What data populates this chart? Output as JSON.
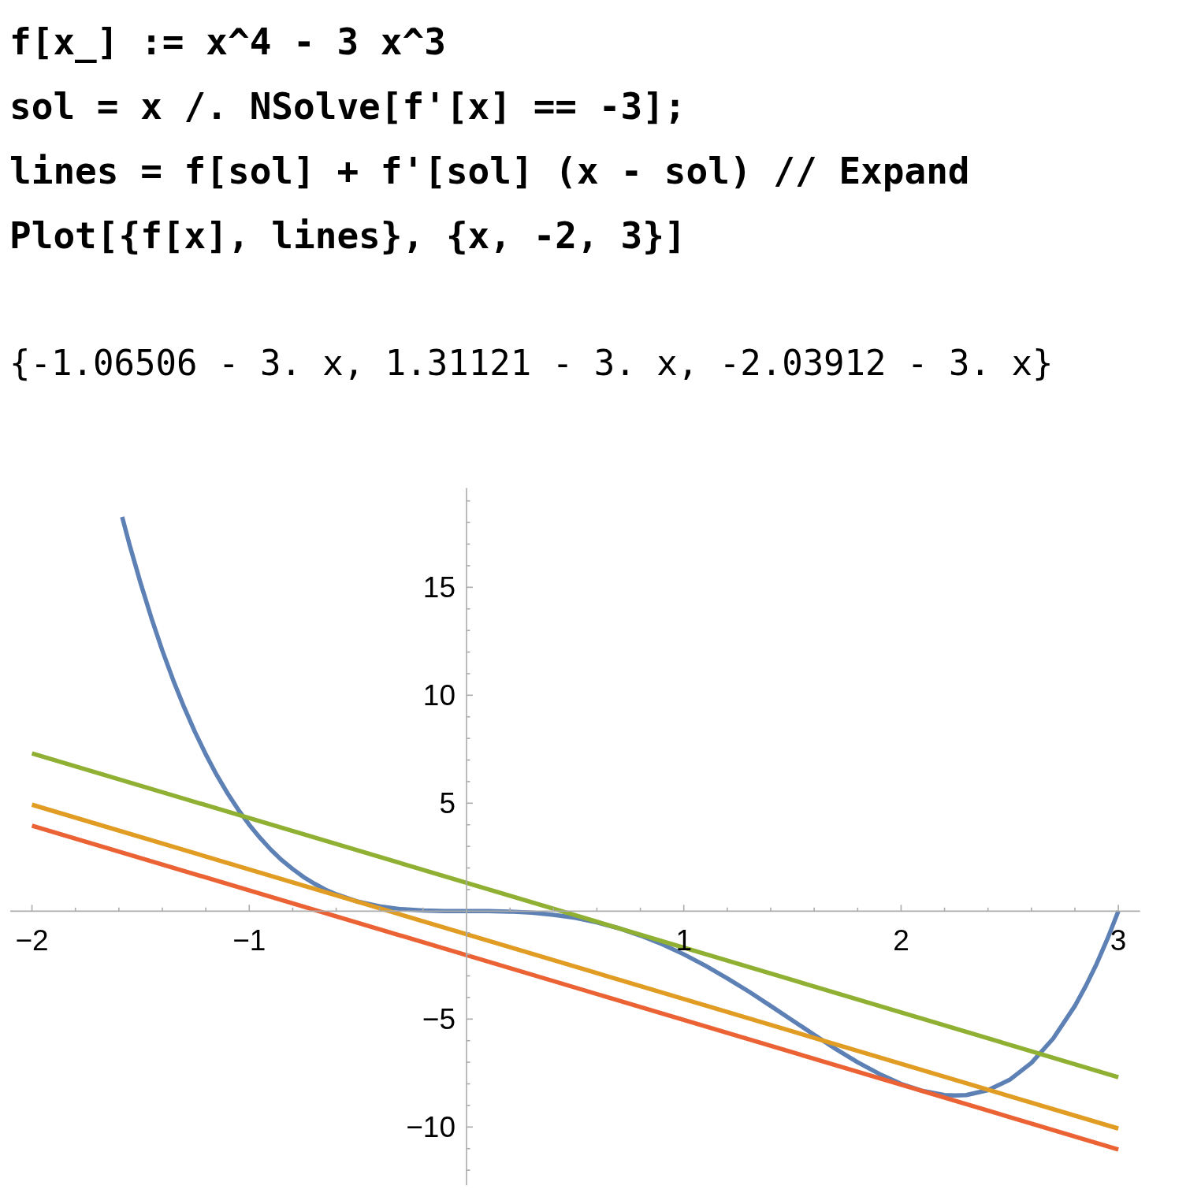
{
  "chart_data": {
    "type": "line",
    "title": "f[x_] := x^4 - 3 x^3\nsol = x /. NSolve[f'[x] == -3];\nlines = f[sol] + f'[sol] (x - sol) // Expand\nPlot[{f[x], lines}, {x, -2, 3}]",
    "subtitle": "{-1.06506 - 3. x, 1.31121 - 3. x, -2.03912 - 3. x}",
    "xlim": [
      -2.1,
      3.1
    ],
    "ylim": [
      -12.7,
      19.6
    ],
    "xticks": [
      -2,
      {
        "value": -1.8,
        "label": null
      },
      {
        "value": -1.6,
        "label": null
      },
      {
        "value": -1.4,
        "label": null
      },
      {
        "value": -1.2,
        "label": null
      },
      -1,
      {
        "value": -0.8,
        "label": null
      },
      {
        "value": -0.6,
        "label": null
      },
      {
        "value": -0.4,
        "label": null
      },
      {
        "value": -0.2,
        "label": null
      },
      {
        "value": 0.2,
        "label": null
      },
      {
        "value": 0.4,
        "label": null
      },
      {
        "value": 0.6,
        "label": null
      },
      {
        "value": 0.8,
        "label": null
      },
      1,
      {
        "value": 1.2,
        "label": null
      },
      {
        "value": 1.4,
        "label": null
      },
      {
        "value": 1.6,
        "label": null
      },
      {
        "value": 1.8,
        "label": null
      },
      2,
      {
        "value": 2.2,
        "label": null
      },
      {
        "value": 2.4,
        "label": null
      },
      {
        "value": 2.6,
        "label": null
      },
      {
        "value": 2.8,
        "label": null
      },
      3
    ],
    "yticks": [
      {
        "value": -12,
        "label": null
      },
      {
        "value": -11,
        "label": null
      },
      -10,
      {
        "value": -9,
        "label": null
      },
      {
        "value": -8,
        "label": null
      },
      {
        "value": -7,
        "label": null
      },
      {
        "value": -6,
        "label": null
      },
      -5,
      {
        "value": -4,
        "label": null
      },
      {
        "value": -3,
        "label": null
      },
      {
        "value": -2,
        "label": null
      },
      {
        "value": -1,
        "label": null
      },
      {
        "value": 1,
        "label": null
      },
      {
        "value": 2,
        "label": null
      },
      {
        "value": 3,
        "label": null
      },
      {
        "value": 4,
        "label": null
      },
      5,
      {
        "value": 6,
        "label": null
      },
      {
        "value": 7,
        "label": null
      },
      {
        "value": 8,
        "label": null
      },
      {
        "value": 9,
        "label": null
      },
      10,
      {
        "value": 11,
        "label": null
      },
      {
        "value": 12,
        "label": null
      },
      {
        "value": 13,
        "label": null
      },
      {
        "value": 14,
        "label": null
      },
      15,
      {
        "value": 16,
        "label": null
      },
      {
        "value": 17,
        "label": null
      },
      {
        "value": 18,
        "label": null
      },
      {
        "value": 19,
        "label": null
      }
    ],
    "series": [
      {
        "color": "#5e81b5",
        "x": [
          -1.585,
          -1.55,
          -1.5,
          -1.45,
          -1.4,
          -1.35,
          -1.3,
          -1.25,
          -1.2,
          -1.15,
          -1.1,
          -1.05,
          -1.0,
          -0.95,
          -0.9,
          -0.85,
          -0.8,
          -0.75,
          -0.7,
          -0.65,
          -0.6,
          -0.5,
          -0.4,
          -0.3,
          -0.2,
          -0.1,
          0,
          0.1,
          0.2,
          0.3,
          0.4,
          0.5,
          0.6,
          0.7,
          0.8,
          0.9,
          1.0,
          1.1,
          1.2,
          1.3,
          1.4,
          1.5,
          1.6,
          1.7,
          1.8,
          1.9,
          2.0,
          2.1,
          2.2,
          2.25,
          2.3,
          2.4,
          2.5,
          2.6,
          2.7,
          2.8,
          2.85,
          2.9,
          2.95,
          3.0
        ],
        "values": [
          18.26,
          16.94,
          15.19,
          13.57,
          12.07,
          10.7,
          9.45,
          8.3,
          7.26,
          6.31,
          5.46,
          4.69,
          4,
          3.39,
          2.84,
          2.36,
          1.95,
          1.58,
          1.27,
          1.0,
          0.78,
          0.44,
          0.22,
          0.09,
          0.03,
          0,
          0,
          0,
          -0.02,
          -0.07,
          -0.17,
          -0.31,
          -0.52,
          -0.79,
          -1.13,
          -1.53,
          -2,
          -2.53,
          -3.11,
          -3.73,
          -4.39,
          -5.06,
          -5.73,
          -6.39,
          -7.0,
          -7.54,
          -8,
          -8.33,
          -8.52,
          -8.54,
          -8.52,
          -8.29,
          -7.81,
          -7.03,
          -5.9,
          -4.39,
          -3.47,
          -2.44,
          -1.28,
          0
        ]
      },
      {
        "color": "#e19c24",
        "x": [
          -2,
          3
        ],
        "values": [
          4.93,
          -10.07
        ]
      },
      {
        "color": "#8fb032",
        "x": [
          -2,
          3
        ],
        "values": [
          7.31,
          -7.69
        ]
      },
      {
        "color": "#eb6235",
        "x": [
          -2,
          3
        ],
        "values": [
          3.96,
          -11.04
        ]
      }
    ]
  }
}
